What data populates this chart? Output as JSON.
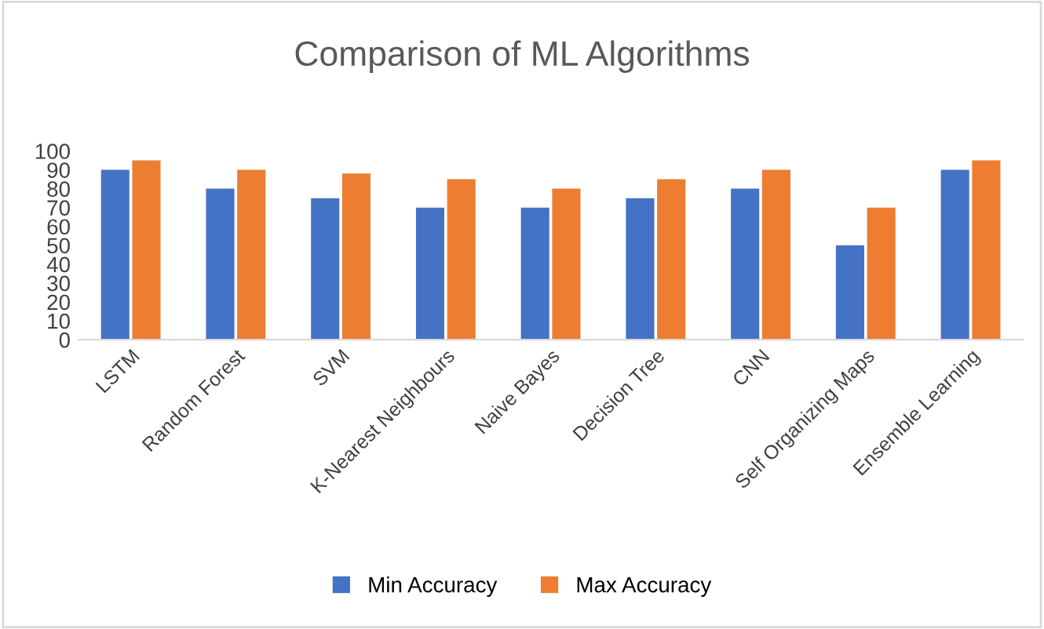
{
  "chart_data": {
    "type": "bar",
    "title": "Comparison of ML Algorithms",
    "categories": [
      "LSTM",
      "Random Forest",
      "SVM",
      "K-Nearest Neighbours",
      "Naive Bayes",
      "Decision Tree",
      "CNN",
      "Self Organizing Maps",
      "Ensemble Learning"
    ],
    "series": [
      {
        "name": "Min Accuracy",
        "color": "#4472c4",
        "values": [
          90,
          80,
          75,
          70,
          70,
          75,
          80,
          50,
          90
        ]
      },
      {
        "name": "Max Accuracy",
        "color": "#ed7d31",
        "values": [
          95,
          90,
          88,
          85,
          80,
          85,
          90,
          70,
          95
        ]
      }
    ],
    "ylim": [
      0,
      100
    ],
    "yticks": [
      0,
      10,
      20,
      30,
      40,
      50,
      60,
      70,
      80,
      90,
      100
    ],
    "grid": false,
    "legend": "bottom"
  }
}
